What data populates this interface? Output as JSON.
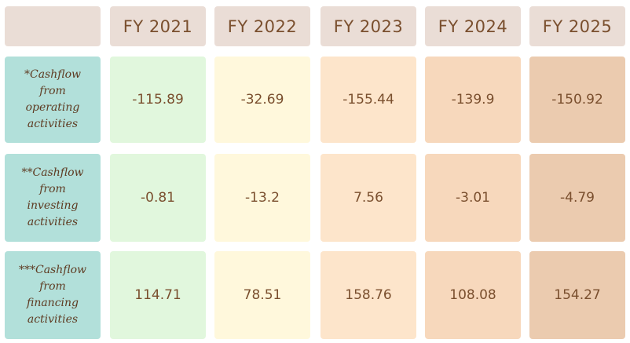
{
  "chart_data": {
    "type": "table",
    "columns": [
      "FY 2021",
      "FY 2022",
      "FY 2023",
      "FY 2024",
      "FY 2025"
    ],
    "rows": [
      {
        "label": "*Cashflow from operating activities",
        "lines": [
          "*Cashflow",
          "from",
          "operating",
          "activities"
        ],
        "values": [
          "-115.89",
          "-32.69",
          "-155.44",
          "-139.9",
          "-150.92"
        ]
      },
      {
        "label": "**Cashflow from investing activities",
        "lines": [
          "**Cashflow",
          "from",
          "investing",
          "activities"
        ],
        "values": [
          "-0.81",
          "-13.2",
          "7.56",
          "-3.01",
          "-4.79"
        ]
      },
      {
        "label": "***Cashflow from financing activities",
        "lines": [
          "***Cashflow",
          "from",
          "financing",
          "activities"
        ],
        "values": [
          "114.71",
          "78.51",
          "158.76",
          "108.08",
          "154.27"
        ]
      }
    ]
  },
  "colors": {
    "column_fills": [
      "#e1f7dd",
      "#fff8dc",
      "#fde5cb",
      "#f7d8bc",
      "#ebcbaf"
    ],
    "header_fill": "#eaddd6",
    "row_label_fill": "#b2e0da",
    "text": "#7a4f2e"
  }
}
